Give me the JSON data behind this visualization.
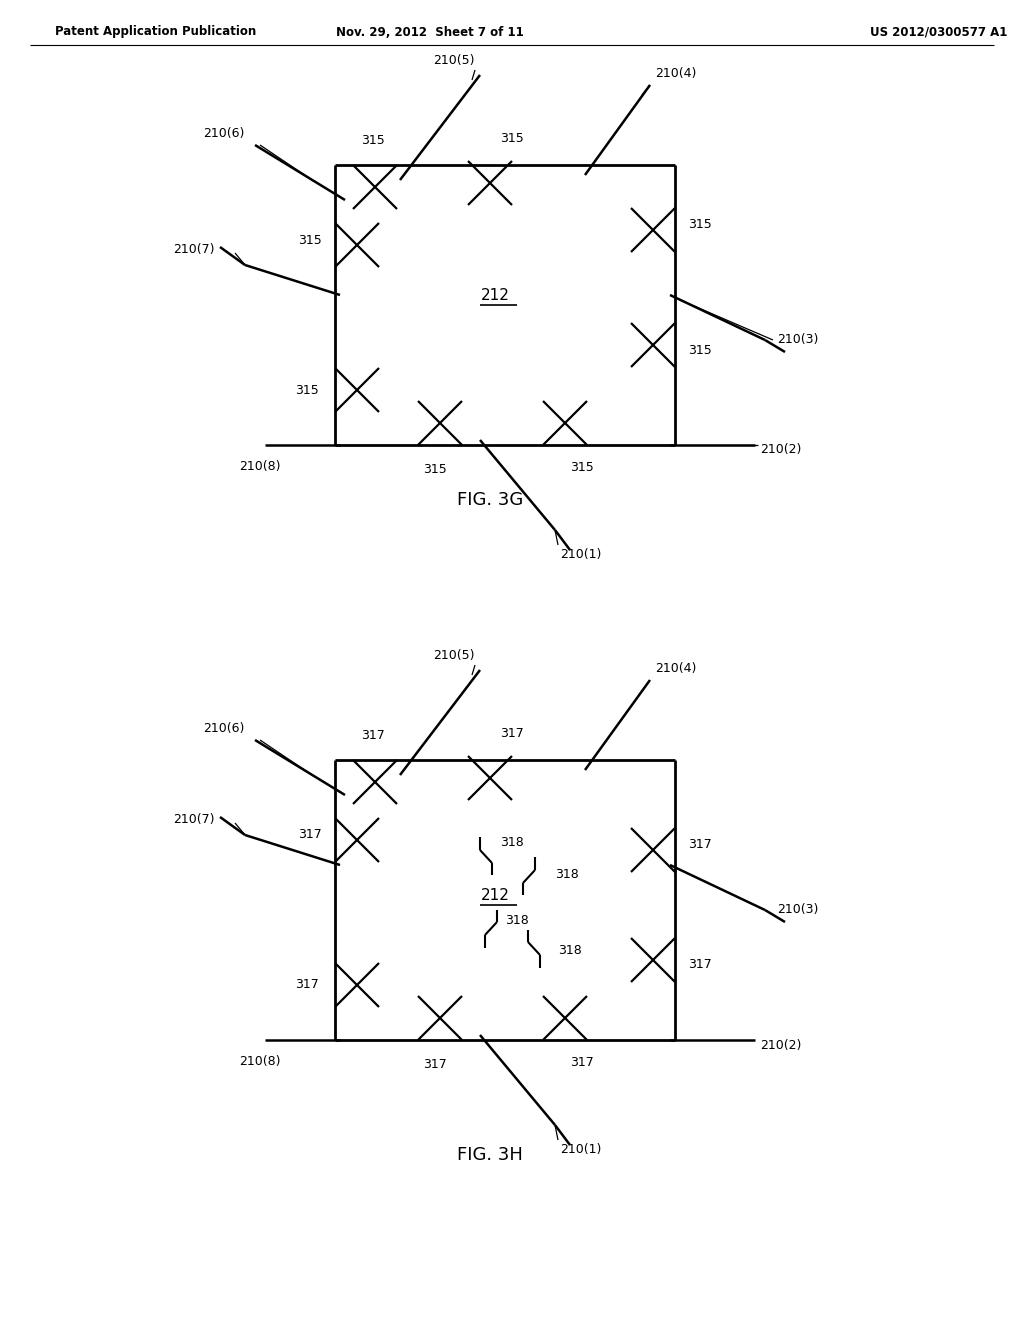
{
  "bg_color": "#ffffff",
  "header_left": "Patent Application Publication",
  "header_mid": "Nov. 29, 2012  Sheet 7 of 11",
  "header_right": "US 2012/0300577 A1",
  "fig_3g_label": "FIG. 3G",
  "fig_3h_label": "FIG. 3H"
}
